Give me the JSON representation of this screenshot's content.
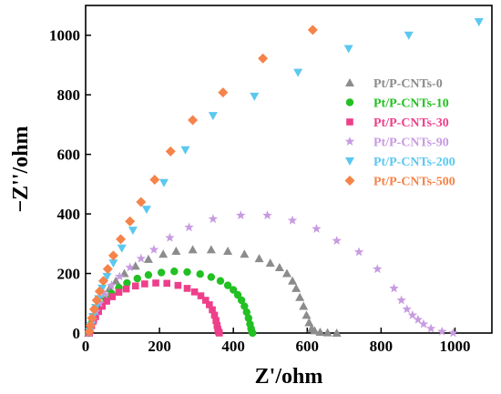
{
  "chart_data": {
    "type": "scatter",
    "title": "",
    "xlabel": "Z'/ohm",
    "ylabel": "−Z''/ohm",
    "xlim": [
      0,
      1100
    ],
    "ylim": [
      0,
      1100
    ],
    "xticks": [
      0,
      200,
      400,
      600,
      800,
      1000
    ],
    "yticks": [
      0,
      200,
      400,
      600,
      800,
      1000
    ],
    "grid": false,
    "legend_position": "right",
    "series": [
      {
        "name": "Pt/P-CNTs-0",
        "color": "#8c8c8c",
        "marker": "triangle-up",
        "points": [
          [
            8,
            0
          ],
          [
            10,
            10
          ],
          [
            14,
            28
          ],
          [
            20,
            50
          ],
          [
            28,
            75
          ],
          [
            38,
            100
          ],
          [
            50,
            125
          ],
          [
            65,
            150
          ],
          [
            82,
            175
          ],
          [
            105,
            200
          ],
          [
            135,
            225
          ],
          [
            170,
            248
          ],
          [
            210,
            265
          ],
          [
            245,
            275
          ],
          [
            290,
            280
          ],
          [
            340,
            280
          ],
          [
            385,
            275
          ],
          [
            430,
            265
          ],
          [
            470,
            250
          ],
          [
            500,
            235
          ],
          [
            525,
            220
          ],
          [
            545,
            200
          ],
          [
            560,
            175
          ],
          [
            570,
            150
          ],
          [
            580,
            120
          ],
          [
            590,
            90
          ],
          [
            598,
            60
          ],
          [
            605,
            35
          ],
          [
            612,
            15
          ],
          [
            620,
            8
          ],
          [
            635,
            3
          ],
          [
            655,
            1
          ],
          [
            680,
            0
          ]
        ]
      },
      {
        "name": "Pt/P-CNTs-10",
        "color": "#22c022",
        "marker": "circle",
        "points": [
          [
            8,
            0
          ],
          [
            10,
            8
          ],
          [
            13,
            20
          ],
          [
            18,
            38
          ],
          [
            24,
            55
          ],
          [
            32,
            75
          ],
          [
            42,
            95
          ],
          [
            55,
            115
          ],
          [
            70,
            133
          ],
          [
            90,
            152
          ],
          [
            112,
            168
          ],
          [
            140,
            183
          ],
          [
            170,
            195
          ],
          [
            205,
            203
          ],
          [
            240,
            207
          ],
          [
            275,
            205
          ],
          [
            310,
            198
          ],
          [
            340,
            188
          ],
          [
            365,
            175
          ],
          [
            385,
            160
          ],
          [
            400,
            145
          ],
          [
            412,
            128
          ],
          [
            422,
            110
          ],
          [
            430,
            90
          ],
          [
            436,
            70
          ],
          [
            441,
            50
          ],
          [
            445,
            30
          ],
          [
            448,
            15
          ],
          [
            450,
            5
          ],
          [
            452,
            0
          ]
        ]
      },
      {
        "name": "Pt/P-CNTs-30",
        "color": "#ee3f8a",
        "marker": "square",
        "points": [
          [
            10,
            0
          ],
          [
            12,
            10
          ],
          [
            16,
            25
          ],
          [
            21,
            40
          ],
          [
            27,
            55
          ],
          [
            35,
            72
          ],
          [
            45,
            90
          ],
          [
            57,
            107
          ],
          [
            72,
            122
          ],
          [
            90,
            137
          ],
          [
            110,
            148
          ],
          [
            135,
            158
          ],
          [
            160,
            165
          ],
          [
            190,
            168
          ],
          [
            220,
            167
          ],
          [
            250,
            160
          ],
          [
            275,
            150
          ],
          [
            295,
            138
          ],
          [
            312,
            125
          ],
          [
            325,
            110
          ],
          [
            335,
            95
          ],
          [
            343,
            78
          ],
          [
            349,
            60
          ],
          [
            353,
            42
          ],
          [
            356,
            25
          ],
          [
            358,
            12
          ],
          [
            360,
            4
          ],
          [
            362,
            0
          ]
        ]
      },
      {
        "name": "Pt/P-CNTs-90",
        "color": "#c89be0",
        "marker": "star",
        "points": [
          [
            10,
            0
          ],
          [
            14,
            20
          ],
          [
            20,
            45
          ],
          [
            28,
            72
          ],
          [
            38,
            100
          ],
          [
            52,
            130
          ],
          [
            70,
            160
          ],
          [
            92,
            190
          ],
          [
            120,
            220
          ],
          [
            150,
            250
          ],
          [
            185,
            280
          ],
          [
            228,
            320
          ],
          [
            280,
            355
          ],
          [
            345,
            383
          ],
          [
            420,
            395
          ],
          [
            492,
            395
          ],
          [
            560,
            378
          ],
          [
            625,
            350
          ],
          [
            680,
            310
          ],
          [
            740,
            272
          ],
          [
            790,
            215
          ],
          [
            835,
            150
          ],
          [
            855,
            110
          ],
          [
            870,
            80
          ],
          [
            885,
            60
          ],
          [
            900,
            45
          ],
          [
            915,
            30
          ],
          [
            935,
            15
          ],
          [
            965,
            5
          ],
          [
            995,
            0
          ]
        ]
      },
      {
        "name": "Pt/P-CNTs-200",
        "color": "#5bc8f0",
        "marker": "triangle-down",
        "points": [
          [
            10,
            5
          ],
          [
            14,
            25
          ],
          [
            20,
            55
          ],
          [
            27,
            85
          ],
          [
            35,
            115
          ],
          [
            45,
            150
          ],
          [
            58,
            190
          ],
          [
            75,
            235
          ],
          [
            98,
            285
          ],
          [
            128,
            345
          ],
          [
            165,
            415
          ],
          [
            212,
            505
          ],
          [
            270,
            615
          ],
          [
            345,
            730
          ],
          [
            457,
            795
          ],
          [
            575,
            875
          ],
          [
            712,
            955
          ],
          [
            875,
            1000
          ],
          [
            1065,
            1045
          ]
        ]
      },
      {
        "name": "Pt/P-CNTs-500",
        "color": "#f5834a",
        "marker": "diamond",
        "points": [
          [
            10,
            5
          ],
          [
            13,
            25
          ],
          [
            17,
            50
          ],
          [
            23,
            80
          ],
          [
            30,
            110
          ],
          [
            38,
            140
          ],
          [
            48,
            175
          ],
          [
            60,
            215
          ],
          [
            75,
            260
          ],
          [
            95,
            315
          ],
          [
            120,
            375
          ],
          [
            150,
            440
          ],
          [
            187,
            515
          ],
          [
            230,
            610
          ],
          [
            290,
            715
          ],
          [
            372,
            808
          ],
          [
            480,
            922
          ],
          [
            615,
            1018
          ]
        ]
      }
    ]
  }
}
